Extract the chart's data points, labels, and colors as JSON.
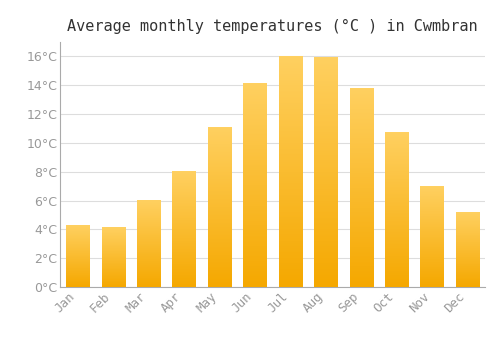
{
  "title": "Average monthly temperatures (°C ) in Cwmbran",
  "months": [
    "Jan",
    "Feb",
    "Mar",
    "Apr",
    "May",
    "Jun",
    "Jul",
    "Aug",
    "Sep",
    "Oct",
    "Nov",
    "Dec"
  ],
  "values": [
    4.3,
    4.1,
    6.0,
    8.0,
    11.1,
    14.1,
    16.0,
    15.9,
    13.8,
    10.7,
    7.0,
    5.2
  ],
  "bar_color_dark": "#F5A800",
  "bar_color_light": "#FFD060",
  "background_color": "#FFFFFF",
  "grid_color": "#DDDDDD",
  "text_color": "#999999",
  "ylim": [
    0,
    17
  ],
  "yticks": [
    0,
    2,
    4,
    6,
    8,
    10,
    12,
    14,
    16
  ],
  "title_fontsize": 11,
  "tick_fontsize": 9
}
